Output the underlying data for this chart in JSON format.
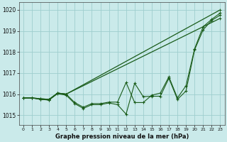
{
  "title": "Graphe pression niveau de la mer (hPa)",
  "bg_color": "#caeaea",
  "grid_color": "#9ecece",
  "line_color": "#1a5c1a",
  "xlim": [
    -0.5,
    23.5
  ],
  "ylim": [
    1014.55,
    1020.35
  ],
  "xticks": [
    0,
    1,
    2,
    3,
    4,
    5,
    6,
    7,
    8,
    9,
    10,
    11,
    12,
    13,
    14,
    15,
    16,
    17,
    18,
    19,
    20,
    21,
    22,
    23
  ],
  "yticks": [
    1015,
    1016,
    1017,
    1018,
    1019,
    1020
  ],
  "series": [
    {
      "x": [
        0,
        1,
        2,
        3,
        4,
        5,
        23
      ],
      "y": [
        1015.82,
        1015.82,
        1015.78,
        1015.75,
        1016.05,
        1016.0,
        1020.0
      ]
    },
    {
      "x": [
        0,
        1,
        2,
        3,
        4,
        5,
        23
      ],
      "y": [
        1015.82,
        1015.82,
        1015.78,
        1015.75,
        1016.05,
        1016.0,
        1019.6
      ]
    },
    {
      "x": [
        0,
        1,
        2,
        3,
        4,
        5,
        6,
        7,
        8,
        9,
        10,
        11,
        12,
        13,
        14,
        15,
        16,
        17,
        18,
        19,
        20,
        21,
        22,
        23
      ],
      "y": [
        1015.82,
        1015.82,
        1015.75,
        1015.72,
        1016.05,
        1016.0,
        1015.6,
        1015.38,
        1015.55,
        1015.55,
        1015.62,
        1015.62,
        1016.55,
        1015.6,
        1015.6,
        1015.95,
        1016.05,
        1016.82,
        1015.82,
        1016.4,
        1018.15,
        1019.2,
        1019.55,
        1019.85
      ]
    },
    {
      "x": [
        0,
        1,
        2,
        3,
        4,
        5,
        6,
        7,
        8,
        9,
        10,
        11,
        12,
        13,
        14,
        15,
        16,
        17,
        18,
        19,
        20,
        21,
        22,
        23
      ],
      "y": [
        1015.82,
        1015.82,
        1015.75,
        1015.72,
        1016.02,
        1015.95,
        1015.55,
        1015.32,
        1015.5,
        1015.5,
        1015.58,
        1015.5,
        1015.05,
        1016.52,
        1015.88,
        1015.9,
        1015.9,
        1016.75,
        1015.75,
        1016.15,
        1018.1,
        1019.05,
        1019.5,
        1019.75
      ]
    }
  ]
}
